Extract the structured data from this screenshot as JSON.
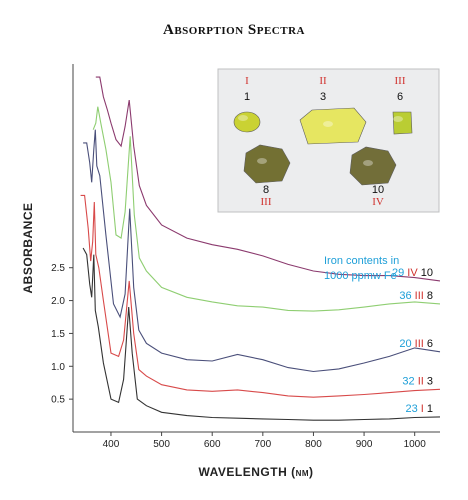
{
  "colors": {
    "iron": "#1e9fd8",
    "class": "#d0312d",
    "sample": "#111111",
    "series": [
      "#333333",
      "#d84a4a",
      "#4a4f7a",
      "#8fce72",
      "#8b3a6e"
    ]
  },
  "inset": {
    "stones": [
      {
        "number": "1",
        "class": "I",
        "shape": "oval",
        "color": "#c9d12a"
      },
      {
        "number": "3",
        "class": "II",
        "shape": "slab",
        "color": "#e6e65a"
      },
      {
        "number": "6",
        "class": "III",
        "shape": "square",
        "color": "#b8cc2a"
      },
      {
        "number": "8",
        "class": "III",
        "shape": "rough",
        "color": "#6d6a2a"
      },
      {
        "number": "10",
        "class": "IV",
        "shape": "rough",
        "color": "#6c6830"
      }
    ]
  },
  "chart_data": {
    "type": "line",
    "title": "Absorption Spectra",
    "xlabel": "WAVELENGTH (nm)",
    "ylabel": "ABSORBANCE",
    "xlim": [
      325,
      1050
    ],
    "ylim": [
      0,
      5.6
    ],
    "x_ticks": [
      400,
      500,
      600,
      700,
      800,
      900,
      1000
    ],
    "y_ticks": [
      0.5,
      1.0,
      1.5,
      2.0,
      2.5
    ],
    "grid": false,
    "annotation": "Iron contents in 1000 ppmw Fe",
    "series": [
      {
        "iron": "23",
        "class": "I",
        "sample": "1",
        "points": [
          [
            345,
            2.8
          ],
          [
            352,
            2.7
          ],
          [
            358,
            2.25
          ],
          [
            362,
            2.05
          ],
          [
            366,
            2.7
          ],
          [
            369,
            1.85
          ],
          [
            375,
            1.6
          ],
          [
            385,
            1.05
          ],
          [
            400,
            0.5
          ],
          [
            415,
            0.45
          ],
          [
            425,
            0.8
          ],
          [
            435,
            1.9
          ],
          [
            442,
            1.2
          ],
          [
            452,
            0.5
          ],
          [
            470,
            0.4
          ],
          [
            500,
            0.3
          ],
          [
            550,
            0.25
          ],
          [
            600,
            0.22
          ],
          [
            650,
            0.21
          ],
          [
            700,
            0.2
          ],
          [
            750,
            0.19
          ],
          [
            800,
            0.18
          ],
          [
            850,
            0.18
          ],
          [
            900,
            0.19
          ],
          [
            950,
            0.2
          ],
          [
            1000,
            0.22
          ],
          [
            1050,
            0.23
          ]
        ]
      },
      {
        "iron": "32",
        "class": "II",
        "sample": "3",
        "points": [
          [
            340,
            3.6
          ],
          [
            348,
            3.6
          ],
          [
            355,
            3.1
          ],
          [
            360,
            2.6
          ],
          [
            364,
            2.9
          ],
          [
            367,
            3.5
          ],
          [
            370,
            2.7
          ],
          [
            376,
            2.5
          ],
          [
            385,
            2.0
          ],
          [
            400,
            1.2
          ],
          [
            415,
            1.15
          ],
          [
            425,
            1.4
          ],
          [
            436,
            2.3
          ],
          [
            445,
            1.5
          ],
          [
            455,
            0.95
          ],
          [
            470,
            0.85
          ],
          [
            500,
            0.72
          ],
          [
            550,
            0.64
          ],
          [
            600,
            0.62
          ],
          [
            650,
            0.64
          ],
          [
            700,
            0.6
          ],
          [
            750,
            0.55
          ],
          [
            800,
            0.53
          ],
          [
            850,
            0.55
          ],
          [
            900,
            0.57
          ],
          [
            950,
            0.6
          ],
          [
            1000,
            0.63
          ],
          [
            1050,
            0.65
          ]
        ]
      },
      {
        "iron": "20",
        "class": "III",
        "sample": "6",
        "points": [
          [
            345,
            4.4
          ],
          [
            352,
            4.4
          ],
          [
            358,
            4.1
          ],
          [
            362,
            3.8
          ],
          [
            366,
            4.3
          ],
          [
            369,
            4.6
          ],
          [
            372,
            4.05
          ],
          [
            378,
            3.9
          ],
          [
            390,
            3.0
          ],
          [
            405,
            1.95
          ],
          [
            418,
            1.75
          ],
          [
            428,
            2.1
          ],
          [
            437,
            3.4
          ],
          [
            445,
            2.2
          ],
          [
            455,
            1.55
          ],
          [
            470,
            1.35
          ],
          [
            500,
            1.2
          ],
          [
            550,
            1.1
          ],
          [
            600,
            1.08
          ],
          [
            650,
            1.18
          ],
          [
            700,
            1.1
          ],
          [
            750,
            0.98
          ],
          [
            800,
            0.92
          ],
          [
            850,
            0.96
          ],
          [
            900,
            1.05
          ],
          [
            950,
            1.15
          ],
          [
            1000,
            1.28
          ],
          [
            1050,
            1.22
          ]
        ]
      },
      {
        "iron": "36",
        "class": "III",
        "sample": "8",
        "points": [
          [
            365,
            4.6
          ],
          [
            370,
            4.7
          ],
          [
            374,
            4.95
          ],
          [
            380,
            4.7
          ],
          [
            390,
            4.3
          ],
          [
            400,
            3.8
          ],
          [
            410,
            3.0
          ],
          [
            420,
            2.95
          ],
          [
            428,
            3.35
          ],
          [
            438,
            4.5
          ],
          [
            446,
            3.3
          ],
          [
            456,
            2.65
          ],
          [
            470,
            2.45
          ],
          [
            500,
            2.2
          ],
          [
            550,
            2.05
          ],
          [
            600,
            1.98
          ],
          [
            650,
            1.92
          ],
          [
            700,
            1.9
          ],
          [
            750,
            1.85
          ],
          [
            800,
            1.84
          ],
          [
            850,
            1.86
          ],
          [
            900,
            1.9
          ],
          [
            950,
            1.95
          ],
          [
            1000,
            1.98
          ],
          [
            1050,
            1.95
          ]
        ]
      },
      {
        "iron": "29",
        "class": "IV",
        "sample": "10",
        "points": [
          [
            370,
            5.4
          ],
          [
            378,
            5.4
          ],
          [
            385,
            5.1
          ],
          [
            393,
            4.9
          ],
          [
            400,
            4.7
          ],
          [
            410,
            4.45
          ],
          [
            420,
            4.35
          ],
          [
            428,
            4.65
          ],
          [
            436,
            5.05
          ],
          [
            445,
            4.35
          ],
          [
            456,
            3.75
          ],
          [
            470,
            3.45
          ],
          [
            500,
            3.15
          ],
          [
            550,
            2.95
          ],
          [
            600,
            2.85
          ],
          [
            650,
            2.78
          ],
          [
            700,
            2.68
          ],
          [
            750,
            2.55
          ],
          [
            800,
            2.45
          ],
          [
            850,
            2.4
          ],
          [
            900,
            2.38
          ],
          [
            950,
            2.38
          ],
          [
            1000,
            2.35
          ],
          [
            1050,
            2.3
          ]
        ]
      }
    ]
  }
}
